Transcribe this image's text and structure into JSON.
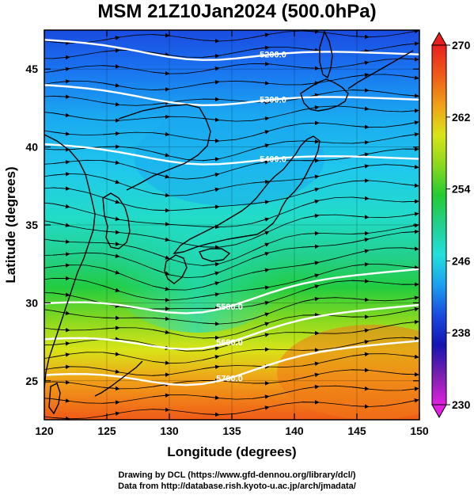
{
  "title": "MSM 21Z10Jan2024 (500.0hPa)",
  "x_axis": {
    "label": "Longitude (degrees)",
    "range": [
      120,
      150
    ],
    "ticks": [
      "120",
      "125",
      "130",
      "135",
      "140",
      "145",
      "150"
    ]
  },
  "y_axis": {
    "label": "Latitude (degrees)",
    "range": [
      22.5,
      47.5
    ],
    "ticks": [
      "25",
      "30",
      "35",
      "40",
      "45"
    ]
  },
  "colorbar": {
    "range": [
      230,
      270
    ],
    "ticks": [
      "230",
      "238",
      "246",
      "254",
      "262",
      "270"
    ],
    "colors": [
      "#e020e0",
      "#7a1fb0",
      "#1414b4",
      "#1a4be0",
      "#1aa0f0",
      "#22e0dc",
      "#22d090",
      "#22cc33",
      "#8cd81c",
      "#d8e418",
      "#f0a018",
      "#f05a18",
      "#e82020"
    ]
  },
  "contours": [
    {
      "label": "5200.0",
      "lat": 46.9
    },
    {
      "label": "5300.0",
      "lat": 44.0
    },
    {
      "label": "5400.0",
      "lat": 40.2
    },
    {
      "label": "5500.0",
      "lat": 30.0
    },
    {
      "label": "5600.0",
      "lat": 27.7
    },
    {
      "label": "5700.0",
      "lat": 25.4
    }
  ],
  "credits": {
    "line1": "Drawing by DCL (https://www.gfd-dennou.org/library/dcl/)",
    "line2": "Data from http://database.rish.kyoto-u.ac.jp/arch/jmadata/"
  }
}
